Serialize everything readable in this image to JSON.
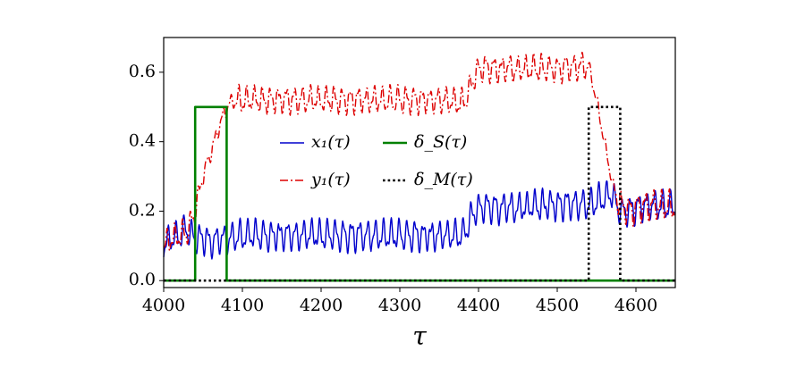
{
  "chart_data": {
    "type": "line",
    "xlabel": "τ",
    "ylabel": "",
    "xlim": [
      4000,
      4650
    ],
    "ylim": [
      -0.02,
      0.7
    ],
    "xticks": [
      4000,
      4100,
      4200,
      4300,
      4400,
      4500,
      4600
    ],
    "xtick_labels": [
      "4000",
      "4100",
      "4200",
      "4300",
      "4400",
      "4500",
      "4600"
    ],
    "yticks": [
      0.0,
      0.2,
      0.4,
      0.6
    ],
    "ytick_labels": [
      "0.0",
      "0.2",
      "0.4",
      "0.6"
    ],
    "grid": false,
    "legend_position": "center",
    "legend_columns": 2,
    "series": [
      {
        "name": "x₁(τ)",
        "color": "#0000cc",
        "style": "solid",
        "x": [
          4000,
          4010,
          4020,
          4030,
          4040,
          4050,
          4060,
          4070,
          4080,
          4100,
          4150,
          4200,
          4250,
          4300,
          4350,
          4380,
          4390,
          4400,
          4450,
          4500,
          4540,
          4550,
          4560,
          4570,
          4580,
          4590,
          4600,
          4620,
          4650
        ],
        "y": [
          0.1,
          0.12,
          0.13,
          0.15,
          0.12,
          0.12,
          0.11,
          0.12,
          0.12,
          0.13,
          0.13,
          0.13,
          0.13,
          0.13,
          0.13,
          0.13,
          0.18,
          0.21,
          0.21,
          0.22,
          0.22,
          0.23,
          0.24,
          0.25,
          0.2,
          0.2,
          0.21,
          0.22,
          0.21
        ]
      },
      {
        "name": "y₁(τ)",
        "color": "#dd0000",
        "style": "dashdot",
        "x": [
          4000,
          4010,
          4020,
          4030,
          4040,
          4050,
          4060,
          4070,
          4080,
          4090,
          4100,
          4150,
          4200,
          4250,
          4300,
          4350,
          4380,
          4390,
          4400,
          4450,
          4500,
          4540,
          4550,
          4560,
          4570,
          4580,
          4590,
          4600,
          4620,
          4650
        ],
        "y": [
          0.1,
          0.12,
          0.13,
          0.14,
          0.2,
          0.3,
          0.37,
          0.44,
          0.5,
          0.52,
          0.52,
          0.52,
          0.52,
          0.52,
          0.52,
          0.52,
          0.51,
          0.56,
          0.61,
          0.61,
          0.61,
          0.62,
          0.52,
          0.4,
          0.28,
          0.22,
          0.2,
          0.21,
          0.22,
          0.21
        ]
      },
      {
        "name": "δ_S(τ)",
        "color": "#008000",
        "style": "solid",
        "x": [
          4000,
          4040,
          4040,
          4080,
          4080,
          4650
        ],
        "y": [
          0.0,
          0.0,
          0.5,
          0.5,
          0.0,
          0.0
        ]
      },
      {
        "name": "δ_M(τ)",
        "color": "#000000",
        "style": "dotted",
        "x": [
          4000,
          4540,
          4540,
          4580,
          4580,
          4650
        ],
        "y": [
          0.0,
          0.0,
          0.5,
          0.5,
          0.0,
          0.0
        ]
      }
    ]
  }
}
